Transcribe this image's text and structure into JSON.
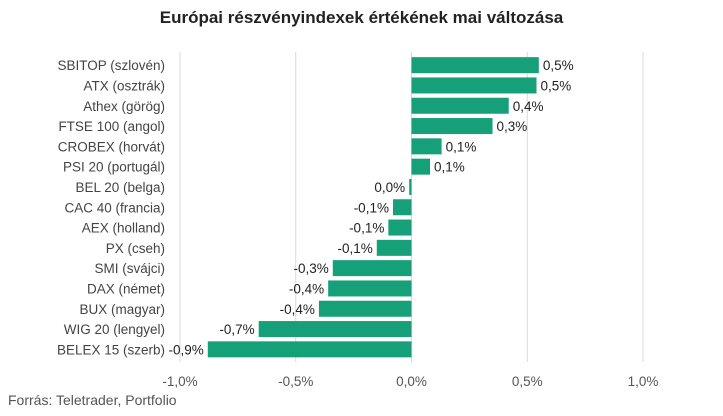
{
  "title": "Európai részvényindexek értékének mai változása",
  "source": "Forrás: Teletrader, Portfolio",
  "colors": {
    "bar": "#16a079",
    "grid": "#d9d9d9"
  },
  "chart_data": {
    "type": "bar",
    "orientation": "horizontal",
    "title": "Európai részvényindexek értékének mai változása",
    "categories": [
      "SBITOP (szlovén)",
      "ATX (osztrák)",
      "Athex (görög)",
      "FTSE 100 (angol)",
      "CROBEX (horvát)",
      "PSI 20 (portugál)",
      "BEL 20 (belga)",
      "CAC 40 (francia)",
      "AEX (holland)",
      "PX (cseh)",
      "SMI (svájci)",
      "DAX (német)",
      "BUX (magyar)",
      "WIG 20 (lengyel)",
      "BELEX 15 (szerb)"
    ],
    "values": [
      0.55,
      0.54,
      0.42,
      0.35,
      0.13,
      0.08,
      -0.01,
      -0.08,
      -0.1,
      -0.15,
      -0.34,
      -0.36,
      -0.4,
      -0.66,
      -0.88
    ],
    "value_labels": [
      "0,5%",
      "0,5%",
      "0,4%",
      "0,3%",
      "0,1%",
      "0,1%",
      "0,0%",
      "-0,1%",
      "-0,1%",
      "-0,1%",
      "-0,3%",
      "-0,4%",
      "-0,4%",
      "-0,7%",
      "-0,9%"
    ],
    "xlim": [
      -1.0,
      1.0
    ],
    "xticks": [
      -1.0,
      -0.5,
      0.0,
      0.5,
      1.0
    ],
    "xtick_labels": [
      "-1,0%",
      "-0,5%",
      "0,0%",
      "0,5%",
      "1,0%"
    ],
    "grid": "vertical",
    "legend": "none"
  }
}
